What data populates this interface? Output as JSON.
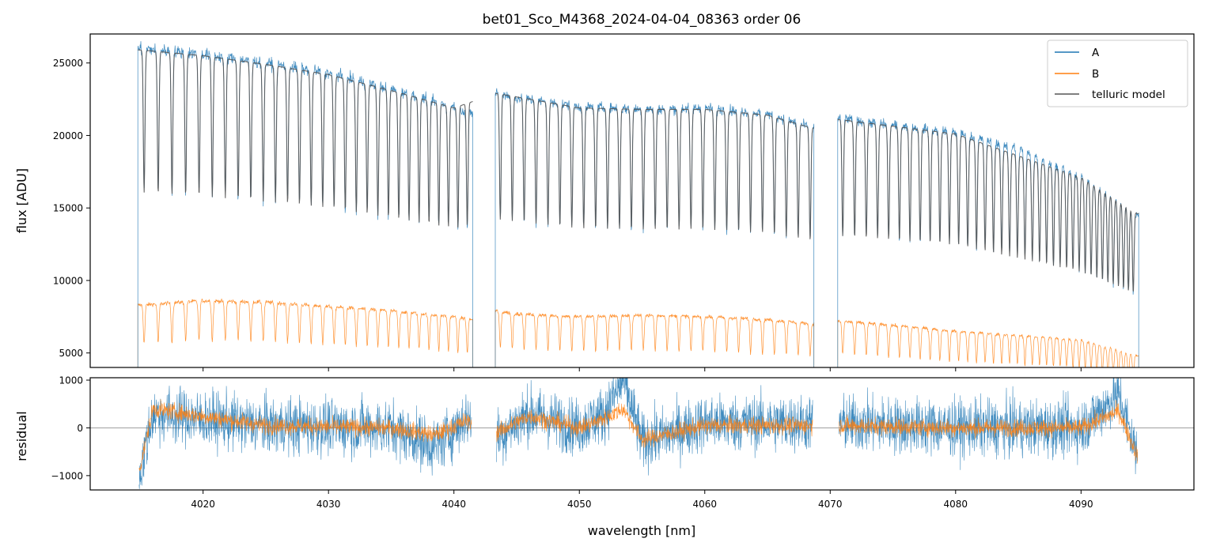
{
  "chart_data": [
    {
      "type": "line",
      "title": "bet01_Sco_M4368_2024-04-04_08363  order 06",
      "xlabel": "",
      "ylabel": "flux [ADU]",
      "xlim": [
        4011,
        4099
      ],
      "ylim": [
        4000,
        27000
      ],
      "x_ticks": [
        4020,
        4030,
        4040,
        4050,
        4060,
        4070,
        4080,
        4090
      ],
      "y_ticks": [
        5000,
        10000,
        15000,
        20000,
        25000
      ],
      "y_tick_labels": [
        "5000",
        "10000",
        "15000",
        "20000",
        "25000"
      ],
      "legend": "top-right",
      "segments": [
        {
          "x_start": 4014.8,
          "x_end": 4041.5
        },
        {
          "x_start": 4043.3,
          "x_end": 4068.7
        },
        {
          "x_start": 4070.6,
          "x_end": 4094.6
        }
      ],
      "series": [
        {
          "name": "A",
          "color": "#1f77b4",
          "x": [
            4015,
            4020,
            4025,
            4030,
            4035,
            4040,
            4041.4,
            4043.4,
            4045,
            4050,
            4055,
            4060,
            4065,
            4068.6,
            4070.7,
            4075,
            4080,
            4085,
            4090,
            4094.5
          ],
          "y": [
            26000,
            25600,
            25000,
            24300,
            23200,
            22000,
            21500,
            23000,
            22600,
            22000,
            21800,
            21900,
            21500,
            20500,
            21200,
            20700,
            20200,
            19100,
            17200,
            14500
          ]
        },
        {
          "name": "B",
          "color": "#ff7f0e",
          "x": [
            4015,
            4020,
            4025,
            4030,
            4035,
            4040,
            4041.4,
            4043.4,
            4045,
            4050,
            4055,
            4060,
            4065,
            4068.6,
            4070.7,
            4075,
            4080,
            4085,
            4090,
            4094.5
          ],
          "y": [
            8300,
            8600,
            8500,
            8200,
            7900,
            7500,
            7300,
            7900,
            7700,
            7500,
            7600,
            7500,
            7300,
            7000,
            7200,
            6900,
            6500,
            6200,
            5900,
            4800
          ]
        },
        {
          "name": "telluric model",
          "color": "#555555",
          "x": [
            4015,
            4020,
            4025,
            4030,
            4035,
            4040,
            4043.4,
            4050,
            4055,
            4060,
            4065,
            4068.6,
            4070.7,
            4080,
            4090,
            4094.5
          ],
          "y": [
            25900,
            25500,
            24900,
            24200,
            23100,
            21900,
            22900,
            21900,
            21800,
            21800,
            21400,
            20500,
            21100,
            20100,
            17100,
            14600
          ]
        }
      ]
    },
    {
      "type": "line",
      "title": "",
      "xlabel": "wavelength [nm]",
      "ylabel": "residual",
      "xlim": [
        4011,
        4099
      ],
      "ylim": [
        -1300,
        1050
      ],
      "x_ticks": [
        4020,
        4030,
        4040,
        4050,
        4060,
        4070,
        4080,
        4090
      ],
      "x_tick_labels": [
        "4020",
        "4030",
        "4040",
        "4050",
        "4060",
        "4070",
        "4080",
        "4090"
      ],
      "y_ticks": [
        -1000,
        0,
        1000
      ],
      "y_tick_labels": [
        "−1000",
        "0",
        "1000"
      ],
      "zero_line": true,
      "series": [
        {
          "name": "A",
          "color": "#1f77b4",
          "x": [
            4015,
            4016,
            4025,
            4035,
            4038.5,
            4041,
            4043.4,
            4046,
            4050,
            4052,
            4053.5,
            4055,
            4060,
            4068.6,
            4070.7,
            4080,
            4090,
            4093,
            4094.5
          ],
          "y": [
            -900,
            300,
            50,
            0,
            -400,
            200,
            -200,
            300,
            0,
            300,
            1000,
            -300,
            100,
            100,
            100,
            0,
            0,
            700,
            -600
          ]
        },
        {
          "name": "B",
          "color": "#ff7f0e",
          "x": [
            4015,
            4016,
            4025,
            4035,
            4038.5,
            4041,
            4043.4,
            4046,
            4050,
            4052,
            4053.5,
            4055,
            4060,
            4068.6,
            4070.7,
            4080,
            4090,
            4093,
            4094.5
          ],
          "y": [
            -800,
            400,
            50,
            0,
            -150,
            150,
            -100,
            250,
            0,
            200,
            400,
            -250,
            50,
            50,
            50,
            0,
            0,
            350,
            -600
          ]
        }
      ]
    }
  ]
}
